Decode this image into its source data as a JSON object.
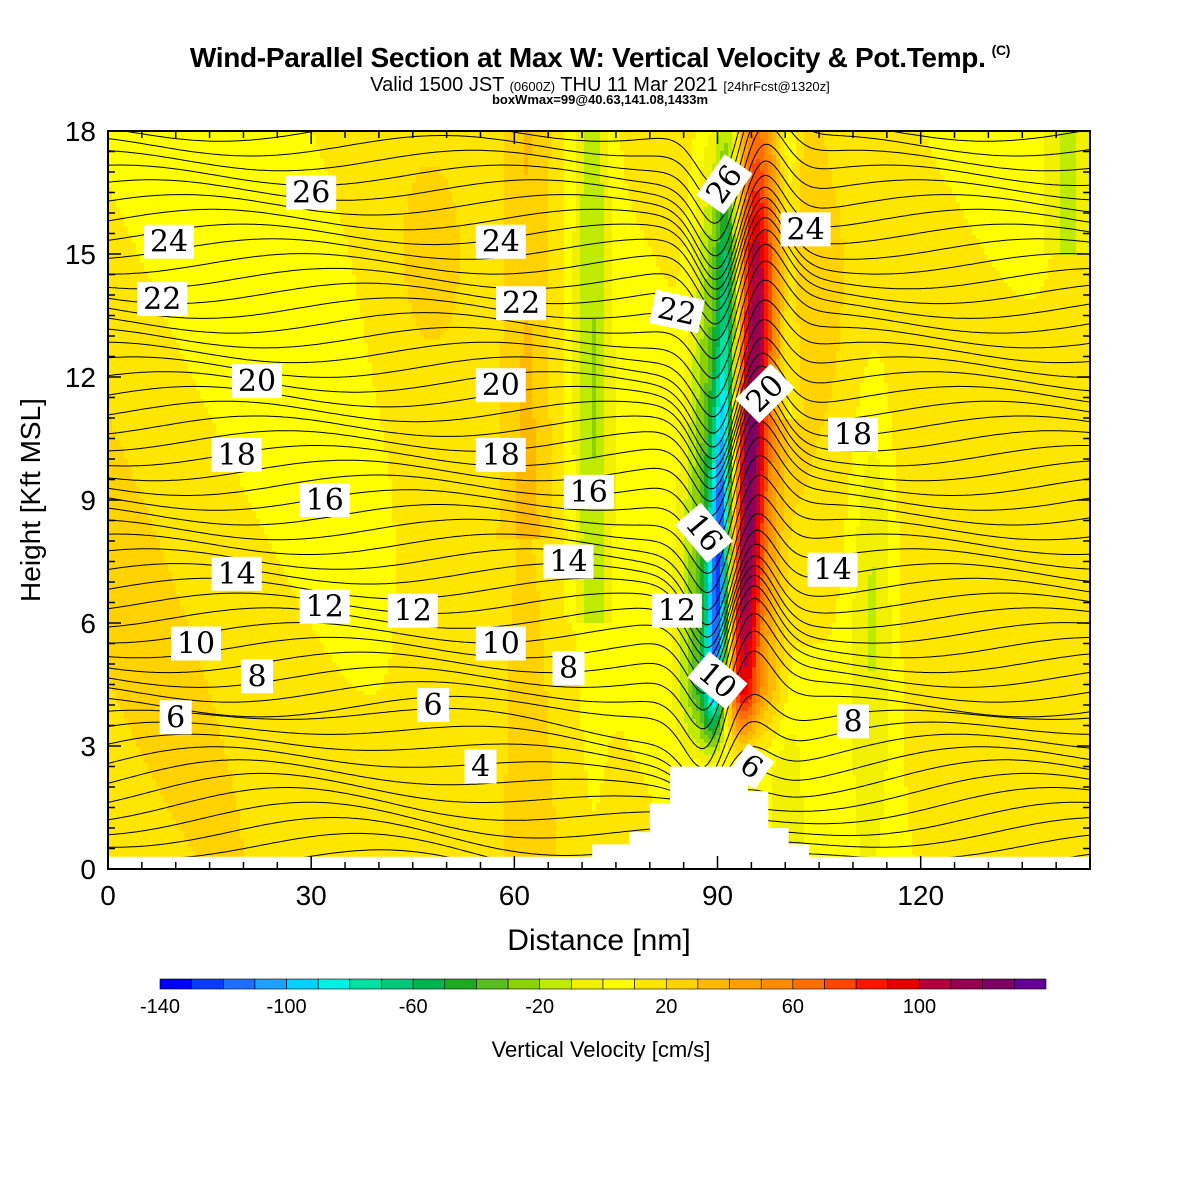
{
  "header": {
    "title": "Wind-Parallel Section at Max W: Vertical Velocity & Pot.Temp.",
    "copyright": "(C)",
    "valid_prefix": "Valid 1500 JST",
    "valid_utc": "(0600Z)",
    "valid_date": "THU 11 Mar 2021",
    "forecast": "[24hrFcst@1320z]",
    "box_info": "boxWmax=99@40.63,141.08,1433m"
  },
  "chart_data": {
    "type": "heatmap",
    "title": "Wind-Parallel Section at Max W: Vertical Velocity & Pot.Temp.",
    "xlabel": "Distance [nm]",
    "ylabel": "Height [Kft MSL]",
    "xlim": [
      0,
      145
    ],
    "ylim": [
      0,
      18
    ],
    "xticks": [
      0,
      30,
      60,
      90,
      120
    ],
    "yticks": [
      0,
      3,
      6,
      9,
      12,
      15,
      18
    ],
    "colorbar": {
      "label": "Vertical Velocity [cm/s]",
      "ticks": [
        -140,
        -100,
        -60,
        -20,
        20,
        60,
        100
      ],
      "min": -140,
      "max": 140,
      "step": 10,
      "colors": [
        "#0000ff",
        "#0a3cff",
        "#1e6eff",
        "#1ea0ff",
        "#00d2ff",
        "#00f0e6",
        "#00e0a0",
        "#00c878",
        "#00b450",
        "#1eaa1e",
        "#5abe1e",
        "#8cd200",
        "#beeb00",
        "#f0f000",
        "#ffff00",
        "#ffe600",
        "#ffd200",
        "#ffb900",
        "#ffa000",
        "#ff8c00",
        "#ff6e00",
        "#ff4600",
        "#ff1400",
        "#e60000",
        "#b4003c",
        "#960050",
        "#7d0064",
        "#640096"
      ]
    },
    "theta_contour_labels": [
      {
        "text": "26",
        "x": 30,
        "y": 16.5
      },
      {
        "text": "24",
        "x": 9,
        "y": 15.3
      },
      {
        "text": "24",
        "x": 58,
        "y": 15.3
      },
      {
        "text": "22",
        "x": 8,
        "y": 13.9
      },
      {
        "text": "22",
        "x": 61,
        "y": 13.8
      },
      {
        "text": "20",
        "x": 22,
        "y": 11.9
      },
      {
        "text": "20",
        "x": 58,
        "y": 11.8
      },
      {
        "text": "18",
        "x": 19,
        "y": 10.1
      },
      {
        "text": "18",
        "x": 58,
        "y": 10.1
      },
      {
        "text": "16",
        "x": 32,
        "y": 9.0
      },
      {
        "text": "16",
        "x": 71,
        "y": 9.2
      },
      {
        "text": "14",
        "x": 19,
        "y": 7.2
      },
      {
        "text": "14",
        "x": 68,
        "y": 7.5
      },
      {
        "text": "12",
        "x": 32,
        "y": 6.4
      },
      {
        "text": "12",
        "x": 45,
        "y": 6.3
      },
      {
        "text": "12",
        "x": 84,
        "y": 6.3
      },
      {
        "text": "10",
        "x": 13,
        "y": 5.5
      },
      {
        "text": "10",
        "x": 58,
        "y": 5.5
      },
      {
        "text": "8",
        "x": 22,
        "y": 4.7
      },
      {
        "text": "8",
        "x": 68,
        "y": 4.9
      },
      {
        "text": "6",
        "x": 10,
        "y": 3.7
      },
      {
        "text": "6",
        "x": 48,
        "y": 4.0
      },
      {
        "text": "4",
        "x": 55,
        "y": 2.5
      },
      {
        "text": "26",
        "x": 91,
        "y": 16.7,
        "rot": -55
      },
      {
        "text": "24",
        "x": 103,
        "y": 15.6
      },
      {
        "text": "22",
        "x": 84,
        "y": 13.6,
        "rot": 12
      },
      {
        "text": "20",
        "x": 97,
        "y": 11.6,
        "rot": -45
      },
      {
        "text": "18",
        "x": 110,
        "y": 10.6
      },
      {
        "text": "16",
        "x": 88,
        "y": 8.2,
        "rot": 50
      },
      {
        "text": "14",
        "x": 107,
        "y": 7.3
      },
      {
        "text": "10",
        "x": 90,
        "y": 4.6,
        "rot": 40
      },
      {
        "text": "8",
        "x": 110,
        "y": 3.6
      },
      {
        "text": "6",
        "x": 95,
        "y": 2.5,
        "rot": 35
      }
    ]
  }
}
